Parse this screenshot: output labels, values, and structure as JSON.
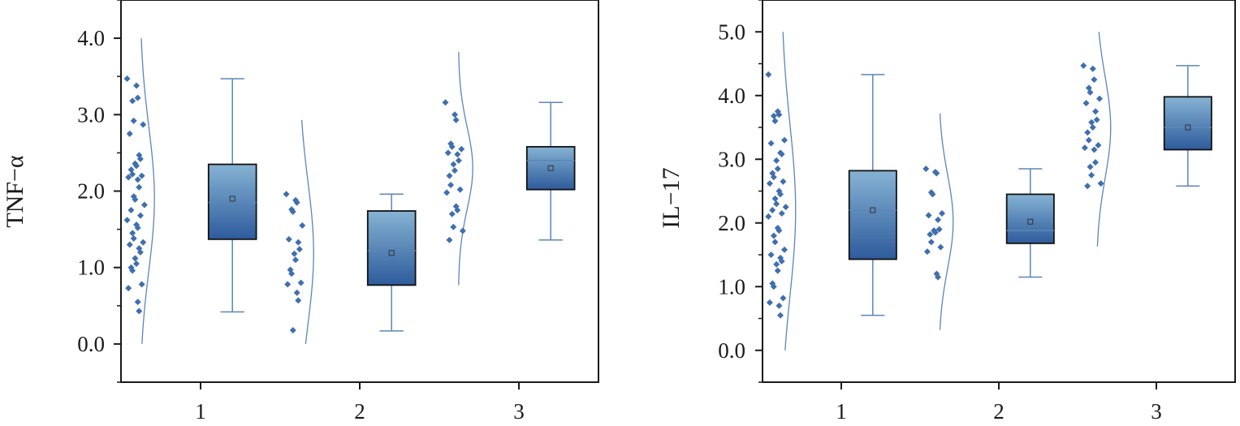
{
  "colors": {
    "box_top": "#86b3d3",
    "box_bottom": "#2e5b9c",
    "scatter": "#3f6fae",
    "curve": "#5b86b8",
    "whisker": "#5b86b8",
    "median": "#5b86b8",
    "axis": "#1a1a1a"
  },
  "chart_data": [
    {
      "type": "box",
      "ylabel": "TNF−α",
      "xlabel": "",
      "categories": [
        "1",
        "2",
        "3"
      ],
      "ylim": [
        -0.5,
        4.5
      ],
      "yticks": [
        0.0,
        1.0,
        2.0,
        3.0,
        4.0
      ],
      "ytick_labels": [
        "0.0",
        "1.0",
        "2.0",
        "3.0",
        "4.0"
      ],
      "grid": false,
      "groups": [
        {
          "category": "1",
          "min": 0.42,
          "q1": 1.37,
          "median": 1.85,
          "q3": 2.35,
          "max": 3.47,
          "mean": 1.9,
          "curve_range": [
            0.0,
            4.0
          ],
          "points": [
            3.47,
            3.38,
            3.22,
            3.18,
            2.92,
            2.87,
            2.75,
            2.47,
            2.42,
            2.36,
            2.33,
            2.28,
            2.22,
            2.2,
            2.18,
            2.15,
            2.05,
            1.93,
            1.89,
            1.82,
            1.75,
            1.68,
            1.62,
            1.56,
            1.52,
            1.45,
            1.38,
            1.33,
            1.3,
            1.25,
            1.2,
            1.12,
            1.05,
            1.0,
            0.96,
            0.78,
            0.73,
            0.55,
            0.43
          ]
        },
        {
          "category": "2",
          "min": 0.17,
          "q1": 0.77,
          "median": 1.22,
          "q3": 1.74,
          "max": 1.96,
          "mean": 1.19,
          "curve_range": [
            0.0,
            2.93
          ],
          "points": [
            1.96,
            1.88,
            1.85,
            1.76,
            1.73,
            1.55,
            1.37,
            1.33,
            1.24,
            1.18,
            1.1,
            0.97,
            0.92,
            0.8,
            0.78,
            0.67,
            0.57,
            0.18
          ]
        },
        {
          "category": "3",
          "min": 1.36,
          "q1": 2.02,
          "median": 2.4,
          "q3": 2.58,
          "max": 3.16,
          "mean": 2.3,
          "curve_range": [
            0.77,
            3.82
          ],
          "points": [
            3.16,
            3.0,
            2.93,
            2.62,
            2.58,
            2.55,
            2.5,
            2.48,
            2.4,
            2.35,
            2.27,
            2.2,
            2.08,
            2.02,
            1.98,
            1.8,
            1.75,
            1.7,
            1.53,
            1.48,
            1.36
          ]
        }
      ]
    },
    {
      "type": "box",
      "ylabel": "IL−17",
      "xlabel": "",
      "categories": [
        "1",
        "2",
        "3"
      ],
      "ylim": [
        -0.5,
        5.5
      ],
      "yticks": [
        0.0,
        1.0,
        2.0,
        3.0,
        4.0,
        5.0
      ],
      "ytick_labels": [
        "0.0",
        "1.0",
        "2.0",
        "3.0",
        "4.0",
        "5.0"
      ],
      "grid": false,
      "groups": [
        {
          "category": "1",
          "min": 0.55,
          "q1": 1.43,
          "median": 2.2,
          "q3": 2.82,
          "max": 4.33,
          "mean": 2.2,
          "curve_range": [
            0.0,
            5.0
          ],
          "points": [
            4.33,
            3.75,
            3.7,
            3.68,
            3.6,
            3.3,
            3.25,
            3.1,
            3.08,
            2.98,
            2.85,
            2.78,
            2.72,
            2.65,
            2.62,
            2.5,
            2.45,
            2.38,
            2.3,
            2.25,
            2.2,
            2.15,
            2.1,
            1.92,
            1.88,
            1.8,
            1.7,
            1.58,
            1.5,
            1.45,
            1.4,
            1.35,
            1.25,
            1.05,
            1.0,
            0.82,
            0.75,
            0.7,
            0.55
          ]
        },
        {
          "category": "2",
          "min": 1.15,
          "q1": 1.68,
          "median": 1.88,
          "q3": 2.45,
          "max": 2.85,
          "mean": 2.02,
          "curve_range": [
            0.32,
            3.72
          ],
          "points": [
            2.85,
            2.8,
            2.78,
            2.48,
            2.45,
            2.15,
            2.12,
            2.05,
            1.9,
            1.88,
            1.85,
            1.82,
            1.7,
            1.62,
            1.55,
            1.2,
            1.15
          ]
        },
        {
          "category": "3",
          "min": 2.58,
          "q1": 3.15,
          "median": 3.5,
          "q3": 3.98,
          "max": 4.47,
          "mean": 3.5,
          "curve_range": [
            1.63,
            5.0
          ],
          "points": [
            4.47,
            4.42,
            4.25,
            4.12,
            4.05,
            3.95,
            3.88,
            3.75,
            3.62,
            3.58,
            3.5,
            3.42,
            3.3,
            3.22,
            3.18,
            3.15,
            2.95,
            2.88,
            2.75,
            2.62,
            2.58
          ]
        }
      ]
    }
  ]
}
